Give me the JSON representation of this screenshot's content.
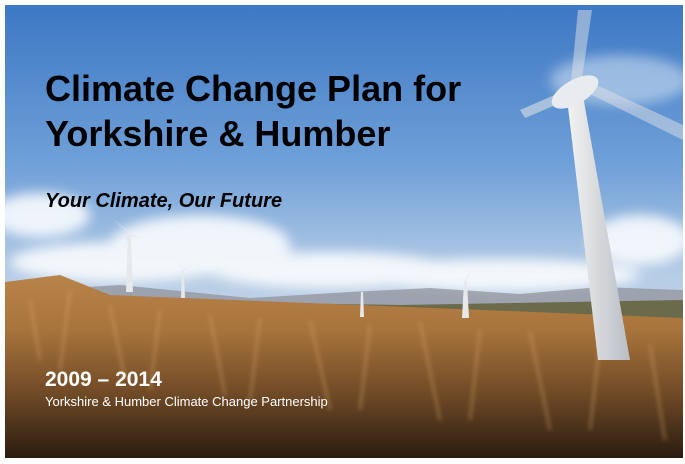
{
  "cover": {
    "title_lines": [
      "Climate Change Plan for",
      "Yorkshire & Humber"
    ],
    "subtitle": "Your Climate, Our Future",
    "years": "2009 – 2014",
    "organisation": "Yorkshire & Humber Climate Change Partnership"
  }
}
